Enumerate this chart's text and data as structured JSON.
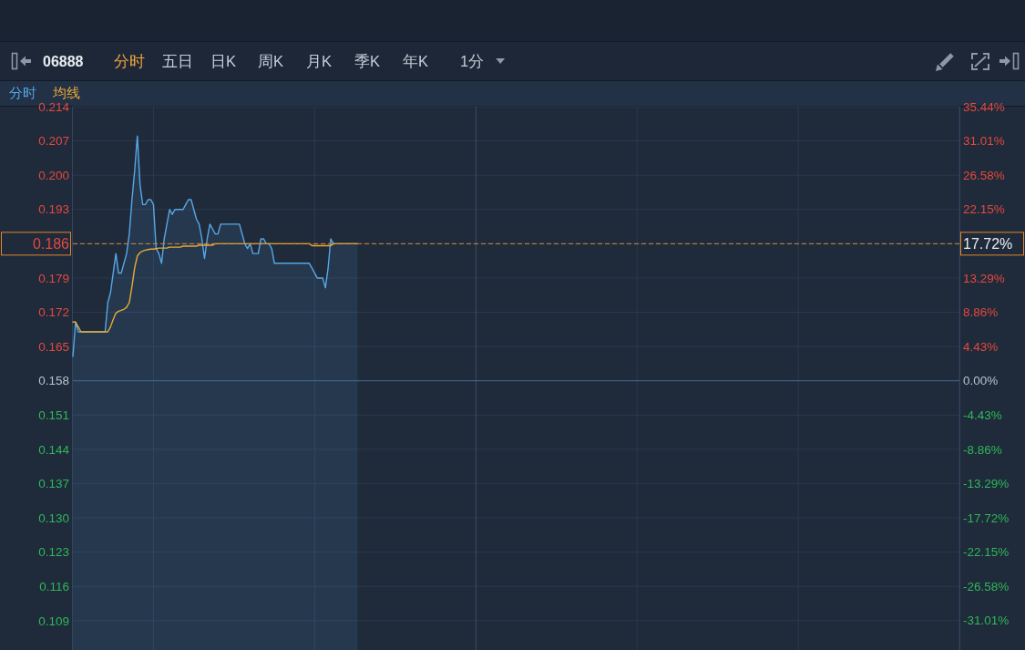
{
  "chart_data": {
    "type": "line",
    "title": "06888",
    "annotations": [
      "分时",
      "五日",
      "日K",
      "周K",
      "月K",
      "季K",
      "年K",
      "1分"
    ],
    "categories": [
      null,
      null,
      null,
      null,
      null,
      null,
      null,
      null,
      null,
      null,
      null,
      null,
      null,
      null,
      null,
      null,
      null,
      null,
      null,
      null,
      null,
      null,
      null,
      null,
      null,
      null,
      null,
      null,
      null,
      null,
      null,
      null,
      null,
      null,
      null,
      null,
      null,
      null,
      null,
      null,
      null,
      null,
      null,
      null,
      null,
      null,
      null,
      null,
      null,
      null,
      null,
      null,
      null,
      null,
      null,
      null,
      null,
      null,
      null,
      null,
      null,
      null,
      null,
      null,
      null,
      null,
      null,
      null,
      null,
      null,
      null,
      null,
      null,
      null,
      null,
      null,
      null,
      null,
      null,
      null,
      null,
      null,
      null,
      null,
      null,
      null,
      null,
      null,
      null,
      null,
      null,
      null,
      null,
      null,
      null,
      null,
      null,
      null,
      null,
      null,
      null,
      null,
      null,
      null,
      null,
      null,
      null,
      null,
      null,
      null,
      null,
      null,
      null,
      null,
      null,
      null,
      null,
      null,
      null,
      null,
      null,
      null,
      null,
      null,
      null,
      null,
      null,
      null,
      null,
      null,
      null,
      null,
      null,
      null,
      null,
      null,
      null,
      null,
      null,
      null,
      null,
      null,
      null,
      null,
      null,
      null,
      null,
      null,
      null,
      null,
      null,
      null,
      null,
      null,
      null,
      null,
      null,
      null,
      null,
      null,
      null,
      null,
      null,
      null,
      null,
      null,
      null,
      null,
      null,
      null,
      null,
      null,
      null,
      null,
      null,
      null,
      null,
      null,
      null,
      null,
      null,
      null,
      null,
      null,
      null,
      null,
      null,
      null,
      null,
      null,
      null,
      null,
      null,
      null,
      null,
      null,
      null,
      null,
      null,
      null,
      null,
      null,
      null,
      null,
      null,
      null,
      null,
      null,
      null,
      null,
      null,
      null,
      null,
      null,
      null,
      null,
      null,
      null,
      null,
      null,
      null,
      null,
      null,
      null,
      null,
      null,
      null,
      null,
      null,
      null,
      null,
      null,
      null,
      null,
      null,
      null,
      null,
      null,
      null,
      null,
      null,
      null,
      null,
      null,
      null,
      null,
      null,
      null,
      null,
      null,
      null,
      null,
      null,
      null,
      null,
      null,
      null,
      null,
      null,
      null,
      null,
      null,
      null,
      null,
      null,
      null,
      null,
      null,
      null,
      null,
      null,
      null,
      null,
      null,
      null,
      null,
      null,
      null,
      null,
      null,
      null,
      null,
      null,
      null,
      null,
      null,
      null,
      null,
      null,
      null,
      null,
      null,
      null,
      null,
      null,
      null,
      null,
      null,
      null,
      null,
      null,
      null,
      null,
      null,
      null,
      null,
      null,
      null,
      null,
      null,
      null,
      null,
      null,
      null,
      null,
      null,
      null,
      null,
      null,
      null,
      null,
      null,
      null,
      null,
      null,
      null,
      null,
      null,
      null,
      null,
      null
    ],
    "series": [
      {
        "name": "分时",
        "type": "area",
        "color": "#56a8e8",
        "values": [
          0.163,
          0.17,
          0.168,
          0.168,
          0.168,
          0.168,
          0.168,
          0.168,
          0.168,
          0.168,
          0.168,
          0.168,
          0.168,
          0.174,
          0.176,
          0.18,
          0.184,
          0.18,
          0.18,
          0.182,
          0.184,
          0.188,
          0.195,
          0.201,
          0.208,
          0.198,
          0.194,
          0.194,
          0.195,
          0.195,
          0.194,
          0.185,
          0.184,
          0.182,
          0.187,
          0.19,
          0.193,
          0.192,
          0.193,
          0.193,
          0.193,
          0.193,
          0.194,
          0.195,
          0.195,
          0.193,
          0.191,
          0.19,
          0.187,
          0.183,
          0.187,
          0.19,
          0.189,
          0.188,
          0.188,
          0.19,
          0.19,
          0.19,
          0.19,
          0.19,
          0.19,
          0.19,
          0.19,
          0.188,
          0.186,
          0.185,
          0.186,
          0.184,
          0.184,
          0.184,
          0.187,
          0.187,
          0.186,
          0.186,
          0.185,
          0.182,
          0.182,
          0.182,
          0.182,
          0.182,
          0.182,
          0.182,
          0.182,
          0.182,
          0.182,
          0.182,
          0.182,
          0.182,
          0.182,
          0.181,
          0.18,
          0.179,
          0.179,
          0.179,
          0.177,
          0.181,
          0.187,
          0.186,
          0.186,
          0.186,
          0.186,
          0.186,
          0.186,
          0.186,
          0.186,
          0.186,
          0.186,
          null,
          null,
          null,
          null,
          null,
          null,
          null,
          null,
          null,
          null,
          null,
          null,
          null,
          null,
          null,
          null,
          null,
          null,
          null,
          null,
          null,
          null,
          null,
          null,
          null,
          null,
          null,
          null,
          null,
          null,
          null,
          null,
          null,
          null,
          null,
          null,
          null,
          null,
          null,
          null,
          null,
          null,
          null,
          null,
          null,
          null,
          null,
          null,
          null,
          null,
          null,
          null,
          null,
          null,
          null,
          null,
          null,
          null,
          null,
          null,
          null,
          null,
          null,
          null,
          null,
          null,
          null,
          null,
          null,
          null,
          null,
          null,
          null,
          null,
          null,
          null,
          null,
          null,
          null,
          null,
          null,
          null,
          null,
          null,
          null,
          null,
          null,
          null,
          null,
          null,
          null,
          null,
          null,
          null,
          null,
          null,
          null,
          null,
          null,
          null,
          null,
          null,
          null,
          null,
          null,
          null,
          null,
          null,
          null,
          null,
          null,
          null,
          null,
          null,
          null,
          null,
          null,
          null,
          null,
          null,
          null,
          null,
          null,
          null,
          null,
          null,
          null,
          null,
          null,
          null,
          null,
          null,
          null,
          null,
          null,
          null,
          null,
          null,
          null,
          null,
          null,
          null,
          null,
          null,
          null,
          null,
          null,
          null,
          null,
          null,
          null,
          null,
          null,
          null,
          null,
          null,
          null,
          null,
          null,
          null,
          null,
          null,
          null,
          null,
          null,
          null,
          null,
          null,
          null,
          null,
          null,
          null,
          null,
          null,
          null,
          null,
          null,
          null,
          null,
          null,
          null,
          null,
          null,
          null,
          null,
          null,
          null,
          null,
          null,
          null,
          null,
          null,
          null,
          null,
          null,
          null,
          null,
          null,
          null,
          null,
          null,
          null,
          null,
          null,
          null,
          null,
          null,
          null,
          null,
          null,
          null,
          null,
          null,
          null,
          null,
          null,
          null,
          null,
          null,
          null,
          null,
          null,
          null,
          null
        ]
      },
      {
        "name": "均线",
        "type": "line",
        "color": "#e8aa36",
        "values": [
          0.17,
          0.17,
          0.169,
          0.168,
          0.168,
          0.168,
          0.168,
          0.168,
          0.168,
          0.168,
          0.168,
          0.168,
          0.168,
          0.168,
          0.169,
          0.1705,
          0.1718,
          0.1722,
          0.1724,
          0.1726,
          0.173,
          0.174,
          0.1773,
          0.1811,
          0.1835,
          0.1842,
          0.1845,
          0.1847,
          0.1848,
          0.1849,
          0.1849,
          0.185,
          0.1851,
          0.1851,
          0.1851,
          0.1851,
          0.1853,
          0.1853,
          0.1853,
          0.1853,
          0.1853,
          0.1855,
          0.1855,
          0.1855,
          0.1855,
          0.1855,
          0.1855,
          0.1857,
          0.1857,
          0.1857,
          0.1857,
          0.1857,
          0.1857,
          0.186,
          0.186,
          0.186,
          0.186,
          0.186,
          0.186,
          0.186,
          0.186,
          0.186,
          0.186,
          0.186,
          0.186,
          0.186,
          0.186,
          0.186,
          0.186,
          0.186,
          0.186,
          0.186,
          0.186,
          0.186,
          0.186,
          0.186,
          0.186,
          0.186,
          0.186,
          0.186,
          0.186,
          0.186,
          0.186,
          0.186,
          0.186,
          0.186,
          0.186,
          0.186,
          0.186,
          0.1856,
          0.1856,
          0.1856,
          0.1856,
          0.1856,
          0.1856,
          0.1856,
          0.1856,
          0.186,
          0.186,
          0.186,
          0.186,
          0.186,
          0.186,
          0.186,
          0.186,
          0.186,
          0.186,
          null,
          null,
          null,
          null,
          null,
          null,
          null,
          null,
          null,
          null,
          null,
          null,
          null,
          null,
          null,
          null,
          null,
          null,
          null,
          null,
          null,
          null,
          null,
          null,
          null,
          null,
          null,
          null,
          null,
          null,
          null,
          null,
          null,
          null,
          null,
          null,
          null,
          null,
          null,
          null,
          null,
          null,
          null,
          null,
          null,
          null,
          null,
          null,
          null,
          null,
          null,
          null,
          null,
          null,
          null,
          null,
          null,
          null,
          null,
          null,
          null,
          null,
          null,
          null,
          null,
          null,
          null,
          null,
          null,
          null,
          null,
          null,
          null,
          null,
          null,
          null,
          null,
          null,
          null,
          null,
          null,
          null,
          null,
          null,
          null,
          null,
          null,
          null,
          null,
          null,
          null,
          null,
          null,
          null,
          null,
          null,
          null,
          null,
          null,
          null,
          null,
          null,
          null,
          null,
          null,
          null,
          null,
          null,
          null,
          null,
          null,
          null,
          null,
          null,
          null,
          null,
          null,
          null,
          null,
          null,
          null,
          null,
          null,
          null,
          null,
          null,
          null,
          null,
          null,
          null,
          null,
          null,
          null,
          null,
          null,
          null,
          null,
          null,
          null,
          null,
          null,
          null,
          null,
          null,
          null,
          null,
          null,
          null,
          null,
          null,
          null,
          null,
          null,
          null,
          null,
          null,
          null,
          null,
          null,
          null,
          null,
          null,
          null,
          null,
          null,
          null,
          null,
          null,
          null,
          null,
          null,
          null,
          null,
          null,
          null,
          null,
          null,
          null,
          null,
          null,
          null,
          null,
          null,
          null,
          null,
          null,
          null,
          null,
          null,
          null,
          null,
          null,
          null,
          null,
          null,
          null,
          null,
          null,
          null,
          null,
          null,
          null,
          null,
          null,
          null,
          null,
          null,
          null,
          null,
          null,
          null,
          null,
          null,
          null,
          null,
          null,
          null,
          null,
          null,
          null,
          null,
          null,
          null,
          null
        ]
      }
    ],
    "ylim": [
      0.103,
      0.214
    ],
    "yticks": [
      0.214,
      0.207,
      {
        "value": 0.2,
        "label": "0.200"
      },
      0.193,
      {
        "value": 0.186,
        "label": null
      },
      0.179,
      0.172,
      0.165,
      0.158,
      0.151,
      0.144,
      0.137,
      {
        "value": 0.13,
        "label": "0.130"
      },
      0.123,
      0.116,
      0.109
    ],
    "y2lim": [
      -34.81,
      35.44
    ],
    "y2ticks": [
      {
        "value": 35.44,
        "label": "35.44%"
      },
      {
        "value": 31.01,
        "label": "31.01%"
      },
      {
        "value": 26.58,
        "label": "26.58%"
      },
      {
        "value": 22.15,
        "label": "22.15%"
      },
      {
        "value": 17.72,
        "label": "17.72%"
      },
      {
        "value": 13.29,
        "label": "13.29%"
      },
      {
        "value": 8.86,
        "label": "8.86%"
      },
      {
        "value": 4.43,
        "label": "4.43%"
      },
      {
        "value": 0,
        "label": "0.00%"
      },
      {
        "value": -4.43,
        "label": "-4.43%"
      },
      {
        "value": -8.86,
        "label": "-8.86%"
      },
      {
        "value": -13.29,
        "label": "-13.29%"
      },
      {
        "value": -17.72,
        "label": "-17.72%"
      },
      {
        "value": -22.15,
        "label": "-22.15%"
      },
      {
        "value": -26.58,
        "label": "-26.58%"
      },
      {
        "value": -31.01,
        "label": "-31.01%"
      }
    ],
    "ref_lines": [
      {
        "axis": "y",
        "value": 0.158,
        "color": "#44688e"
      },
      {
        "axis": "y",
        "value": 0.186,
        "label": "0.186",
        "color": "#e0892e",
        "line_style": "dashed"
      }
    ],
    "grid": true,
    "legend": "top left",
    "tick_labels": "y"
  }
}
